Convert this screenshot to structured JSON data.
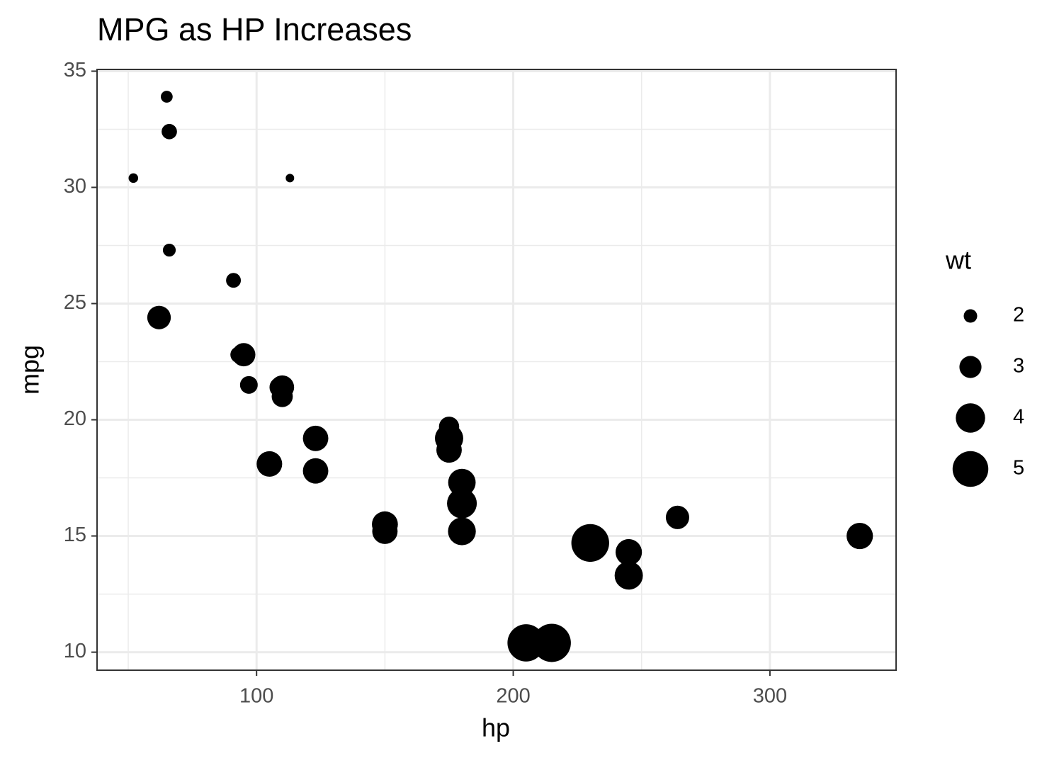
{
  "chart_data": {
    "type": "scatter",
    "title": "MPG as HP Increases",
    "x_label": "hp",
    "y_label": "mpg",
    "x": [
      110,
      110,
      93,
      110,
      175,
      105,
      245,
      62,
      95,
      123,
      123,
      180,
      180,
      180,
      205,
      215,
      230,
      66,
      52,
      65,
      97,
      150,
      150,
      245,
      175,
      66,
      91,
      113,
      264,
      175,
      335,
      109
    ],
    "values": [
      21.0,
      21.0,
      22.8,
      21.4,
      18.7,
      18.1,
      14.3,
      24.4,
      22.8,
      19.2,
      17.8,
      16.4,
      17.3,
      15.2,
      10.4,
      10.4,
      14.7,
      32.4,
      30.4,
      33.9,
      21.5,
      15.5,
      15.2,
      13.3,
      19.2,
      27.3,
      26.0,
      30.4,
      15.8,
      19.7,
      15.0,
      21.4
    ],
    "sizes": [
      2.62,
      2.875,
      2.32,
      3.215,
      3.44,
      3.46,
      3.57,
      3.19,
      3.15,
      3.44,
      3.44,
      4.07,
      3.73,
      3.78,
      5.25,
      5.424,
      5.345,
      2.2,
      1.615,
      1.835,
      2.465,
      3.52,
      3.435,
      3.84,
      3.845,
      1.935,
      2.14,
      1.513,
      3.17,
      2.77,
      3.57,
      2.78
    ],
    "color": "#000000",
    "size_legend": {
      "title": "wt",
      "breaks": [
        2,
        3,
        4,
        5
      ]
    },
    "xlim": [
      37.85,
      349.15
    ],
    "xticks": [
      100,
      200,
      300
    ],
    "ylim": [
      9.225,
      35.075
    ],
    "yticks": [
      10,
      15,
      20,
      25,
      30,
      35
    ],
    "grid": true
  }
}
